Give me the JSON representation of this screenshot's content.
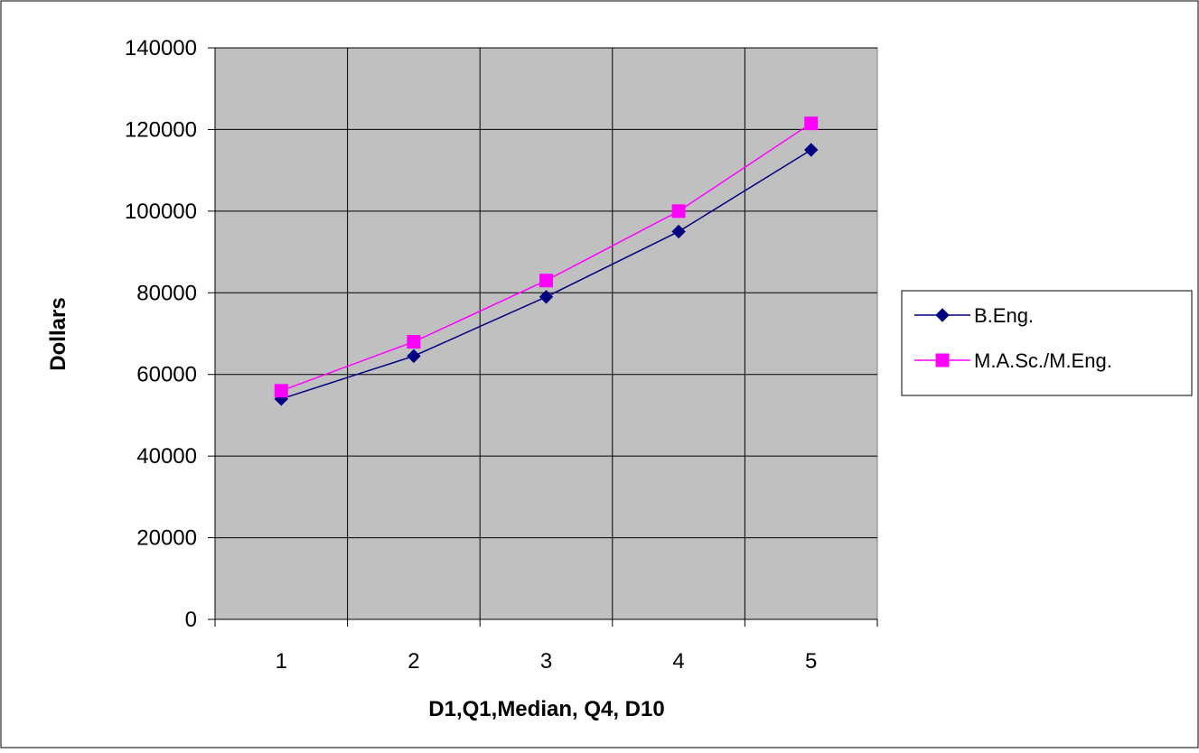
{
  "chart_data": {
    "type": "line",
    "x": [
      1,
      2,
      3,
      4,
      5
    ],
    "xlabel": "D1,Q1,Median, Q4, D10",
    "ylabel": "Dollars",
    "ylim": [
      0,
      140000
    ],
    "yticks": [
      0,
      20000,
      40000,
      60000,
      80000,
      100000,
      120000,
      140000
    ],
    "grid": true,
    "legend_position": "right",
    "series": [
      {
        "name": "B.Eng.",
        "values": [
          54000,
          64500,
          79000,
          95000,
          115000
        ],
        "color": "#000080",
        "marker": "diamond"
      },
      {
        "name": "M.A.Sc./M.Eng.",
        "values": [
          56000,
          68000,
          83000,
          100000,
          121500
        ],
        "color": "#ff00ff",
        "marker": "square"
      }
    ],
    "plot_background": "#c0c0c0"
  }
}
